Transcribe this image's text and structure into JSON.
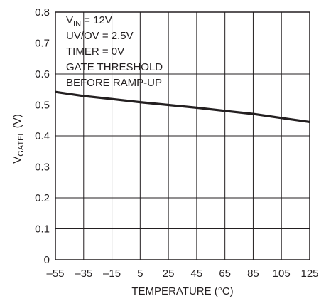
{
  "chart_data": {
    "type": "line",
    "title": "",
    "xlabel": "TEMPERATURE (°C)",
    "ylabel_main": "V",
    "ylabel_sub": "GATEL",
    "ylabel_unit": " (V)",
    "xlim": [
      -55,
      125
    ],
    "ylim": [
      0,
      0.8
    ],
    "x_ticks": [
      -55,
      -35,
      -15,
      5,
      25,
      45,
      65,
      85,
      105,
      125
    ],
    "x_tick_labels": [
      "–55",
      "–35",
      "–15",
      "5",
      "25",
      "45",
      "65",
      "85",
      "105",
      "125"
    ],
    "y_ticks": [
      0,
      0.1,
      0.2,
      0.3,
      0.4,
      0.5,
      0.6,
      0.7,
      0.8
    ],
    "y_tick_labels": [
      "0",
      "0.1",
      "0.2",
      "0.3",
      "0.4",
      "0.5",
      "0.6",
      "0.7",
      "0.8"
    ],
    "grid": true,
    "series": [
      {
        "x": [
          -55,
          -35,
          -15,
          5,
          25,
          45,
          65,
          85,
          105,
          125
        ],
        "y": [
          0.542,
          0.529,
          0.519,
          0.509,
          0.5,
          0.491,
          0.481,
          0.471,
          0.458,
          0.445
        ]
      }
    ],
    "annotation": {
      "line1_main": "V",
      "line1_sub": "IN",
      "line1_rest": " = 12V",
      "line2": "UV/OV = 2.5V",
      "line3": "TIMER = 0V",
      "line4": "GATE THRESHOLD",
      "line5": "BEFORE RAMP-UP"
    }
  }
}
